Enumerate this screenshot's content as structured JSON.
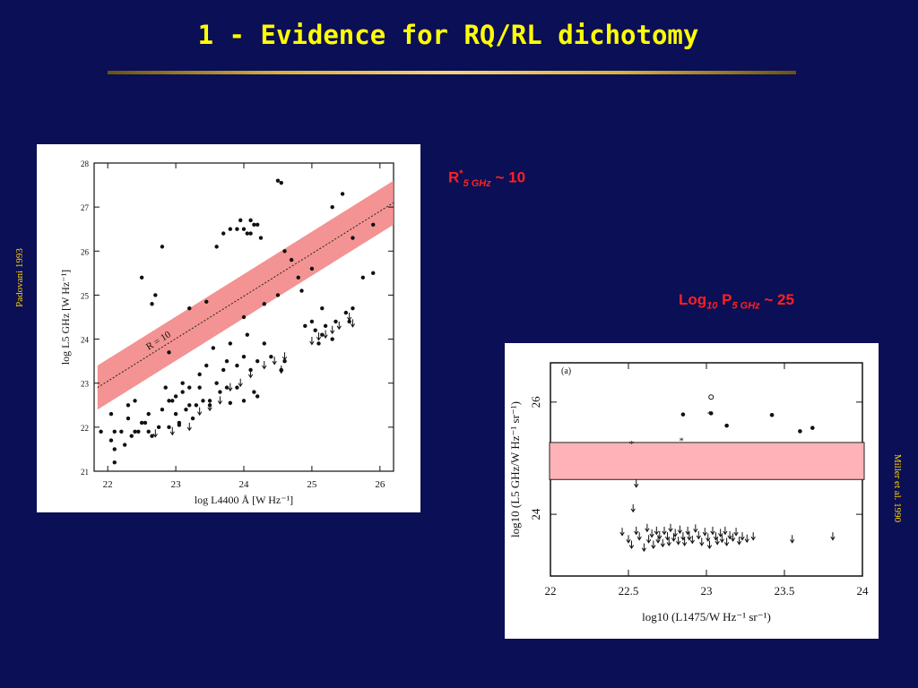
{
  "slide": {
    "title": "1 - Evidence for RQ/RL dichotomy",
    "annotation_r": {
      "base": "R",
      "sup": "*",
      "sub": "5 GHz",
      "rest": " ~ 10"
    },
    "annotation_p": {
      "base": "Log",
      "sub1": "10",
      "mid": " P",
      "sub2": "5 GHz",
      "rest": " ~ 25"
    },
    "credit_left": "Padovani 1993",
    "credit_right": "Miller et al. 1990"
  },
  "colors": {
    "background": "#0b0f55",
    "title": "#ffff00",
    "annotation": "#ff2020",
    "band": "#f28080"
  },
  "chart_data": [
    {
      "type": "scatter",
      "xlabel": "log L4400 Å [W Hz⁻¹]",
      "ylabel": "log L5 GHz [W Hz⁻¹]",
      "xlim": [
        21.8,
        26.2
      ],
      "ylim": [
        21,
        28
      ],
      "xticks": [
        "22",
        "23",
        "24",
        "25",
        "26"
      ],
      "yticks": [
        "21",
        "22",
        "23",
        "24",
        "25",
        "26",
        "27",
        "28"
      ],
      "annotation": "R = 10",
      "band_line": {
        "x": [
          21.85,
          26.2
        ],
        "y": [
          22.9,
          27.1
        ]
      },
      "band_halfwidth": 0.5,
      "points": [
        [
          21.9,
          21.9
        ],
        [
          22.05,
          22.3
        ],
        [
          22.05,
          21.7
        ],
        [
          22.1,
          21.5
        ],
        [
          22.1,
          21.2
        ],
        [
          22.1,
          21.9
        ],
        [
          22.2,
          21.9
        ],
        [
          22.25,
          21.6
        ],
        [
          22.3,
          22.5
        ],
        [
          22.35,
          21.8
        ],
        [
          22.4,
          21.9
        ],
        [
          22.4,
          22.6
        ],
        [
          22.5,
          22.1
        ],
        [
          22.55,
          22.1
        ],
        [
          22.6,
          21.9
        ],
        [
          22.65,
          21.8
        ],
        [
          22.75,
          22.0
        ],
        [
          22.8,
          22.4
        ],
        [
          22.85,
          22.9
        ],
        [
          22.9,
          22.0
        ],
        [
          22.9,
          22.6
        ],
        [
          22.95,
          22.6
        ],
        [
          23.0,
          22.7
        ],
        [
          23.0,
          22.3
        ],
        [
          23.05,
          22.1
        ],
        [
          23.1,
          22.8
        ],
        [
          23.1,
          23.0
        ],
        [
          23.15,
          22.4
        ],
        [
          23.2,
          22.5
        ],
        [
          23.2,
          22.9
        ],
        [
          23.3,
          22.5
        ],
        [
          23.35,
          22.9
        ],
        [
          23.35,
          23.2
        ],
        [
          23.4,
          22.6
        ],
        [
          23.45,
          23.4
        ],
        [
          23.5,
          22.6
        ],
        [
          23.55,
          23.8
        ],
        [
          23.6,
          23.0
        ],
        [
          23.65,
          22.8
        ],
        [
          23.7,
          23.3
        ],
        [
          23.75,
          23.5
        ],
        [
          23.8,
          23.9
        ],
        [
          23.9,
          23.4
        ],
        [
          24.0,
          23.6
        ],
        [
          24.0,
          24.5
        ],
        [
          24.05,
          24.1
        ],
        [
          24.1,
          23.3
        ],
        [
          24.2,
          23.5
        ],
        [
          24.3,
          23.9
        ],
        [
          24.4,
          23.6
        ],
        [
          24.5,
          25.0
        ],
        [
          24.6,
          23.5
        ],
        [
          22.3,
          22.2
        ],
        [
          22.45,
          21.9
        ],
        [
          22.6,
          22.3
        ],
        [
          23.25,
          22.2
        ],
        [
          23.5,
          22.5
        ],
        [
          23.75,
          22.9
        ],
        [
          23.9,
          22.9
        ],
        [
          24.15,
          22.8
        ],
        [
          23.6,
          26.1
        ],
        [
          23.7,
          26.4
        ],
        [
          23.8,
          26.5
        ],
        [
          23.9,
          26.5
        ],
        [
          23.95,
          26.7
        ],
        [
          24.0,
          26.5
        ],
        [
          24.05,
          26.4
        ],
        [
          24.1,
          26.7
        ],
        [
          24.1,
          26.4
        ],
        [
          24.15,
          26.6
        ],
        [
          24.2,
          26.6
        ],
        [
          24.25,
          26.3
        ],
        [
          24.6,
          26.0
        ],
        [
          24.7,
          25.8
        ],
        [
          24.5,
          27.6
        ],
        [
          24.55,
          27.55
        ],
        [
          24.8,
          25.4
        ],
        [
          24.85,
          25.1
        ],
        [
          25.0,
          25.6
        ],
        [
          25.15,
          24.7
        ],
        [
          25.3,
          27.0
        ],
        [
          25.45,
          27.3
        ],
        [
          25.6,
          26.3
        ],
        [
          25.75,
          25.4
        ],
        [
          25.9,
          26.6
        ],
        [
          25.9,
          25.5
        ],
        [
          22.65,
          24.8
        ],
        [
          22.7,
          25.0
        ],
        [
          23.2,
          24.7
        ],
        [
          22.9,
          23.7
        ],
        [
          25.0,
          24.4
        ],
        [
          25.05,
          24.2
        ],
        [
          25.1,
          23.9
        ],
        [
          25.15,
          24.1
        ],
        [
          25.2,
          24.3
        ],
        [
          25.3,
          24.0
        ],
        [
          25.35,
          24.4
        ],
        [
          25.5,
          24.6
        ],
        [
          25.55,
          24.4
        ],
        [
          25.6,
          24.7
        ],
        [
          22.5,
          25.4
        ],
        [
          22.8,
          26.1
        ],
        [
          23.45,
          24.85
        ],
        [
          24.3,
          24.8
        ],
        [
          24.9,
          24.3
        ],
        [
          23.05,
          22.05
        ],
        [
          23.8,
          22.55
        ],
        [
          24.0,
          22.6
        ],
        [
          24.2,
          22.7
        ],
        [
          24.55,
          23.3
        ]
      ],
      "upper_limits": [
        [
          22.7,
          21.85
        ],
        [
          22.95,
          21.9
        ],
        [
          23.2,
          22.0
        ],
        [
          23.35,
          22.35
        ],
        [
          23.5,
          22.45
        ],
        [
          23.65,
          22.6
        ],
        [
          23.8,
          22.9
        ],
        [
          23.95,
          23.0
        ],
        [
          24.1,
          23.2
        ],
        [
          24.3,
          23.4
        ],
        [
          24.45,
          23.5
        ],
        [
          24.55,
          23.3
        ],
        [
          24.6,
          23.6
        ],
        [
          25.0,
          23.95
        ],
        [
          25.1,
          24.05
        ],
        [
          25.2,
          24.1
        ],
        [
          25.3,
          24.2
        ],
        [
          25.4,
          24.3
        ],
        [
          25.55,
          24.5
        ],
        [
          25.6,
          24.35
        ]
      ]
    },
    {
      "type": "scatter",
      "panel_label": "(a)",
      "xlabel": "log10 (L1475/W Hz⁻¹ sr⁻¹)",
      "ylabel": "log10 (L5 GHz/W Hz⁻¹ sr⁻¹)",
      "xlim": [
        22,
        24
      ],
      "ylim": [
        22.9,
        26.7
      ],
      "xticks": [
        "22",
        "22.5",
        "23",
        "23.5",
        "24"
      ],
      "yticks": [
        "24",
        "26"
      ],
      "band_y": [
        24.62,
        25.28
      ],
      "points": [
        [
          22.85,
          25.78
        ],
        [
          23.03,
          25.8
        ],
        [
          23.13,
          25.58
        ],
        [
          23.42,
          25.77
        ],
        [
          23.6,
          25.48
        ],
        [
          23.68,
          25.54
        ]
      ],
      "stars": [
        [
          22.52,
          25.26
        ],
        [
          22.84,
          25.32
        ],
        [
          23.02,
          25.79
        ]
      ],
      "open_points": [
        [
          23.03,
          26.09
        ]
      ],
      "upper_limits": [
        [
          22.55,
          24.54
        ],
        [
          22.53,
          24.1
        ],
        [
          22.46,
          23.68
        ],
        [
          22.5,
          23.55
        ],
        [
          22.52,
          23.45
        ],
        [
          22.55,
          23.7
        ],
        [
          22.57,
          23.6
        ],
        [
          22.6,
          23.4
        ],
        [
          22.62,
          23.75
        ],
        [
          22.63,
          23.55
        ],
        [
          22.65,
          23.65
        ],
        [
          22.66,
          23.45
        ],
        [
          22.68,
          23.7
        ],
        [
          22.69,
          23.55
        ],
        [
          22.7,
          23.62
        ],
        [
          22.72,
          23.48
        ],
        [
          22.73,
          23.7
        ],
        [
          22.75,
          23.6
        ],
        [
          22.76,
          23.5
        ],
        [
          22.77,
          23.75
        ],
        [
          22.79,
          23.58
        ],
        [
          22.8,
          23.66
        ],
        [
          22.82,
          23.52
        ],
        [
          22.83,
          23.72
        ],
        [
          22.85,
          23.6
        ],
        [
          22.86,
          23.5
        ],
        [
          22.88,
          23.7
        ],
        [
          22.89,
          23.6
        ],
        [
          22.91,
          23.54
        ],
        [
          22.93,
          23.74
        ],
        [
          22.95,
          23.62
        ],
        [
          22.97,
          23.5
        ],
        [
          22.99,
          23.68
        ],
        [
          23.01,
          23.58
        ],
        [
          23.02,
          23.45
        ],
        [
          23.04,
          23.7
        ],
        [
          23.06,
          23.6
        ],
        [
          23.07,
          23.52
        ],
        [
          23.09,
          23.66
        ],
        [
          23.1,
          23.56
        ],
        [
          23.12,
          23.7
        ],
        [
          23.13,
          23.5
        ],
        [
          23.15,
          23.62
        ],
        [
          23.17,
          23.58
        ],
        [
          23.19,
          23.68
        ],
        [
          23.21,
          23.52
        ],
        [
          23.23,
          23.6
        ],
        [
          23.26,
          23.56
        ],
        [
          23.3,
          23.6
        ],
        [
          23.55,
          23.55
        ],
        [
          23.81,
          23.6
        ]
      ]
    }
  ]
}
